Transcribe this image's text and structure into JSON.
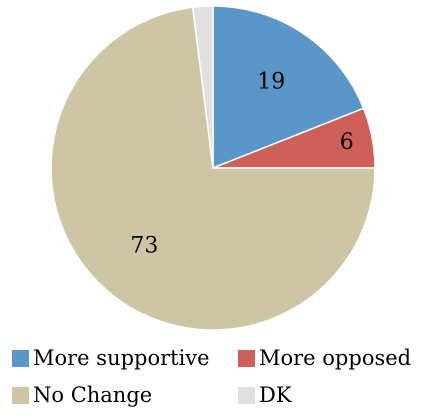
{
  "chart_data": {
    "type": "pie",
    "start_angle": "12 o'clock",
    "direction": "clockwise",
    "slices": [
      {
        "name": "More supportive",
        "value": 19,
        "label": "19",
        "color": "#5B96C9"
      },
      {
        "name": "More opposed",
        "value": 6,
        "label": "6",
        "color": "#CF6059"
      },
      {
        "name": "No Change",
        "value": 73,
        "label": "73",
        "color": "#CEC5A5"
      },
      {
        "name": "DK",
        "value": 2,
        "label": "",
        "color": "#E0E0E0"
      }
    ],
    "legend_position": "bottom"
  }
}
